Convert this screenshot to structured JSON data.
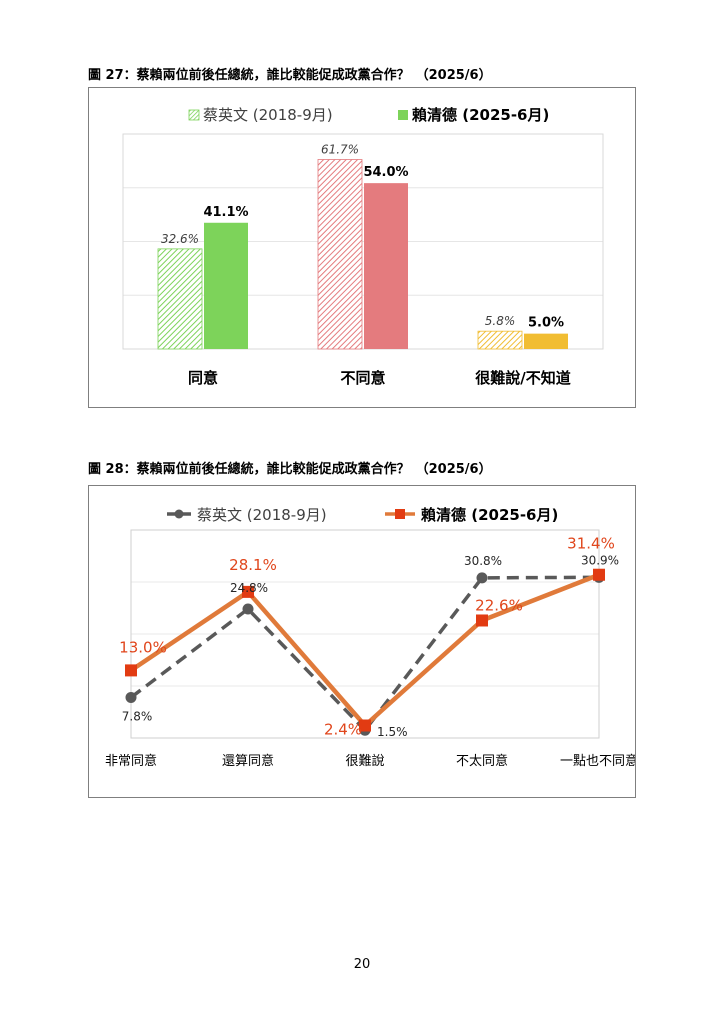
{
  "fig27": {
    "caption": "圖 27：蔡賴兩位前後任總統，誰比較能促成政黨合作？",
    "date": "（2025/6）"
  },
  "fig28": {
    "caption": "圖 28：蔡賴兩位前後任總統，誰比較能促成政黨合作？",
    "date": "（2025/6）"
  },
  "page_number": "20",
  "colors": {
    "agree": "#7dd35a",
    "disagree": "#e47b7e",
    "unsure": "#f1bd32",
    "tsai_line": "#595959",
    "lai_line": "#e07a3a",
    "lai_marker": "#e23b12",
    "lai_label": "#e0461c"
  },
  "chart_data": [
    {
      "type": "bar",
      "categories": [
        "同意",
        "不同意",
        "很難說/不知道"
      ],
      "series": [
        {
          "name": "蔡英文 (2018-9月)",
          "values": [
            32.6,
            61.7,
            5.8
          ],
          "labels": [
            "32.6%",
            "61.7%",
            "5.8%"
          ]
        },
        {
          "name": "賴清德 (2025-6月)",
          "values": [
            41.1,
            54.0,
            5.0
          ],
          "labels": [
            "41.1%",
            "54.0%",
            "5.0%"
          ]
        }
      ],
      "ylim": [
        0,
        70
      ],
      "grid": true,
      "legend": "top"
    },
    {
      "type": "line",
      "categories": [
        "非常同意",
        "還算同意",
        "很難說",
        "不太同意",
        "一點也不同意"
      ],
      "series": [
        {
          "name": "蔡英文 (2018-9月)",
          "values": [
            7.8,
            24.8,
            1.5,
            30.8,
            30.9
          ],
          "labels": [
            "7.8%",
            "24.8%",
            "1.5%",
            "30.8%",
            "30.9%"
          ]
        },
        {
          "name": "賴清德 (2025-6月)",
          "values": [
            13.0,
            28.1,
            2.4,
            22.6,
            31.4
          ],
          "labels": [
            "13.0%",
            "28.1%",
            "2.4%",
            "22.6%",
            "31.4%"
          ]
        }
      ],
      "ylim": [
        0,
        40
      ],
      "grid": true,
      "legend": "top"
    }
  ]
}
